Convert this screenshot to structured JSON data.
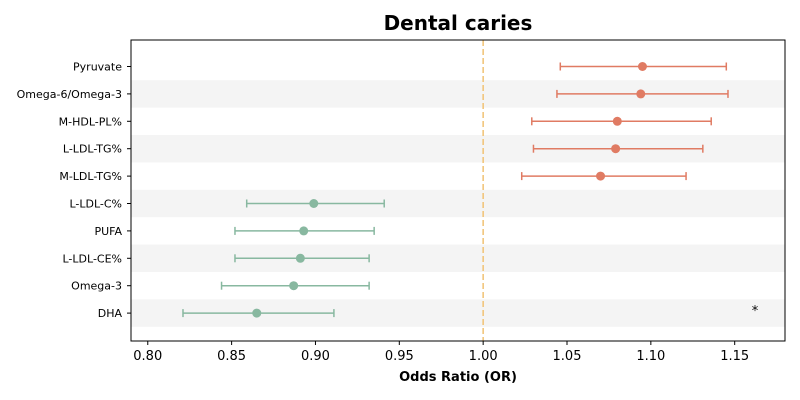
{
  "chart_data": {
    "type": "forest",
    "title": "Dental caries",
    "xlabel": "Odds Ratio (OR)",
    "xlim": [
      0.79,
      1.18
    ],
    "xticks": [
      "0.80",
      "0.85",
      "0.90",
      "0.95",
      "1.00",
      "1.05",
      "1.10",
      "1.15"
    ],
    "xtick_values": [
      0.8,
      0.85,
      0.9,
      0.95,
      1.0,
      1.05,
      1.1,
      1.15
    ],
    "reference_line": 1.0,
    "reference_color": "#f2c57c",
    "colors": {
      "positive": "#e07b63",
      "negative": "#88b8a0",
      "band": "#f4f4f4"
    },
    "annotation": "*",
    "rows": [
      {
        "label": "Pyruvate",
        "or": 1.095,
        "lo": 1.046,
        "hi": 1.145,
        "group": "positive"
      },
      {
        "label": "Omega-6/Omega-3",
        "or": 1.094,
        "lo": 1.044,
        "hi": 1.146,
        "group": "positive"
      },
      {
        "label": "M-HDL-PL%",
        "or": 1.08,
        "lo": 1.029,
        "hi": 1.136,
        "group": "positive"
      },
      {
        "label": "L-LDL-TG%",
        "or": 1.079,
        "lo": 1.03,
        "hi": 1.131,
        "group": "positive"
      },
      {
        "label": "M-LDL-TG%",
        "or": 1.07,
        "lo": 1.023,
        "hi": 1.121,
        "group": "positive"
      },
      {
        "label": "L-LDL-C%",
        "or": 0.899,
        "lo": 0.859,
        "hi": 0.941,
        "group": "negative"
      },
      {
        "label": "PUFA",
        "or": 0.893,
        "lo": 0.852,
        "hi": 0.935,
        "group": "negative"
      },
      {
        "label": "L-LDL-CE%",
        "or": 0.891,
        "lo": 0.852,
        "hi": 0.932,
        "group": "negative"
      },
      {
        "label": "Omega-3",
        "or": 0.887,
        "lo": 0.844,
        "hi": 0.932,
        "group": "negative"
      },
      {
        "label": "DHA",
        "or": 0.865,
        "lo": 0.821,
        "hi": 0.911,
        "group": "negative"
      }
    ]
  }
}
